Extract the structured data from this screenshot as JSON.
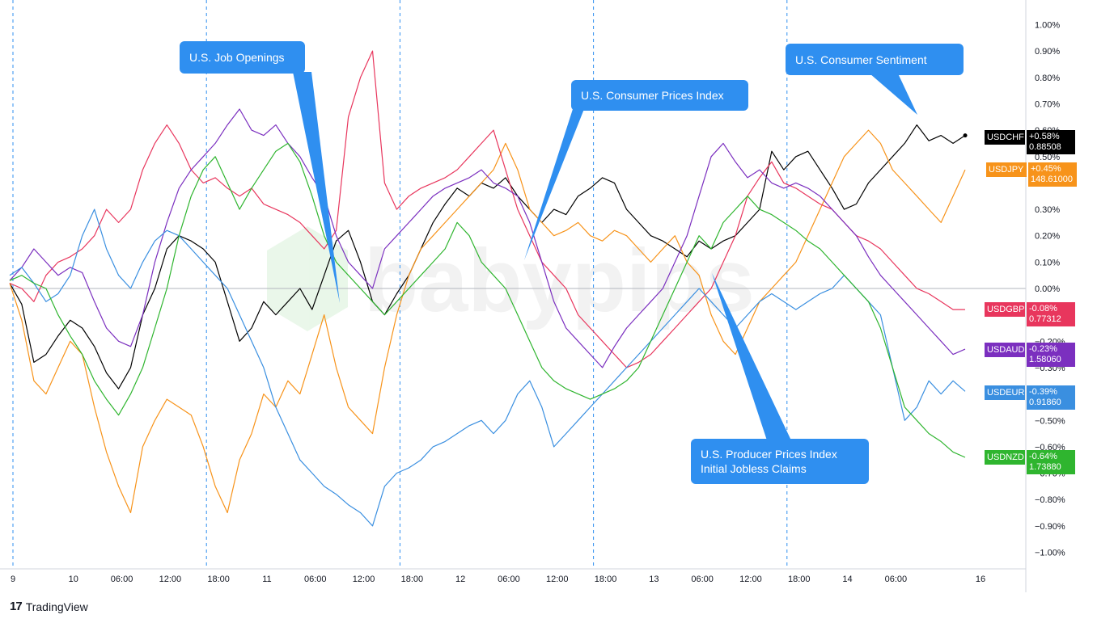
{
  "branding": {
    "logo_mark": "17",
    "logo_text": "TradingView",
    "watermark_text": "babypips"
  },
  "chart_data": {
    "type": "line",
    "ylabel": "",
    "xlabel": "",
    "ylim": [
      -1.05,
      1.05
    ],
    "y_ticks": [
      1.0,
      0.9,
      0.8,
      0.7,
      0.6,
      0.5,
      0.4,
      0.3,
      0.2,
      0.1,
      0.0,
      -0.1,
      -0.2,
      -0.3,
      -0.4,
      -0.5,
      -0.6,
      -0.7,
      -0.8,
      -0.9,
      -1.0
    ],
    "y_tick_labels": [
      "1.00%",
      "0.90%",
      "0.80%",
      "0.70%",
      "0.60%",
      "0.50%",
      "0.40%",
      "0.30%",
      "0.20%",
      "0.10%",
      "0.00%",
      "−0.10%",
      "−0.20%",
      "−0.30%",
      "−0.40%",
      "−0.50%",
      "−0.60%",
      "−0.70%",
      "−0.80%",
      "−0.90%",
      "−1.00%"
    ],
    "x_unit": "hours since 9 00:00",
    "x_range": [
      0,
      168
    ],
    "x_ticks": [
      {
        "x": 0,
        "label": "9"
      },
      {
        "x": 10,
        "label": "10"
      },
      {
        "x": 18,
        "label": "06:00"
      },
      {
        "x": 26,
        "label": "12:00"
      },
      {
        "x": 34,
        "label": "18:00"
      },
      {
        "x": 42,
        "label": "11"
      },
      {
        "x": 50,
        "label": "06:00"
      },
      {
        "x": 58,
        "label": "12:00"
      },
      {
        "x": 66,
        "label": "18:00"
      },
      {
        "x": 74,
        "label": "12"
      },
      {
        "x": 82,
        "label": "06:00"
      },
      {
        "x": 90,
        "label": "12:00"
      },
      {
        "x": 98,
        "label": "18:00"
      },
      {
        "x": 106,
        "label": "13"
      },
      {
        "x": 114,
        "label": "06:00"
      },
      {
        "x": 122,
        "label": "12:00"
      },
      {
        "x": 130,
        "label": "18:00"
      },
      {
        "x": 138,
        "label": "14"
      },
      {
        "x": 146,
        "label": "06:00"
      },
      {
        "x": 160,
        "label": "16"
      }
    ],
    "event_lines_x": [
      0,
      32,
      64,
      96,
      128
    ],
    "zero_line": true,
    "grid": false,
    "legend": "right-axis labels",
    "series": [
      {
        "name": "USDCHF",
        "change": "+0.58%",
        "price": "0.88508",
        "color": "#000000",
        "x": [
          0,
          2,
          4,
          6,
          8,
          10,
          12,
          14,
          16,
          18,
          20,
          22,
          24,
          26,
          28,
          30,
          32,
          34,
          36,
          38,
          40,
          42,
          44,
          46,
          48,
          50,
          52,
          54,
          56,
          58,
          60,
          62,
          64,
          66,
          68,
          70,
          72,
          74,
          76,
          78,
          80,
          82,
          84,
          86,
          88,
          90,
          92,
          94,
          96,
          98,
          100,
          102,
          104,
          106,
          108,
          110,
          112,
          114,
          116,
          118,
          120,
          122,
          124,
          126,
          128,
          130,
          132,
          134,
          136,
          138,
          140,
          142,
          144,
          146,
          148,
          150,
          152,
          154,
          156,
          158
        ],
        "values": [
          0.02,
          -0.06,
          -0.28,
          -0.25,
          -0.18,
          -0.12,
          -0.15,
          -0.22,
          -0.32,
          -0.38,
          -0.3,
          -0.1,
          0.0,
          0.15,
          0.2,
          0.18,
          0.15,
          0.1,
          -0.05,
          -0.2,
          -0.15,
          -0.05,
          -0.1,
          -0.05,
          0.0,
          -0.08,
          0.05,
          0.18,
          0.22,
          0.1,
          -0.05,
          -0.1,
          -0.02,
          0.05,
          0.15,
          0.25,
          0.32,
          0.38,
          0.35,
          0.4,
          0.38,
          0.42,
          0.35,
          0.3,
          0.25,
          0.3,
          0.28,
          0.35,
          0.38,
          0.42,
          0.4,
          0.3,
          0.25,
          0.2,
          0.18,
          0.15,
          0.12,
          0.18,
          0.15,
          0.18,
          0.2,
          0.25,
          0.3,
          0.52,
          0.45,
          0.5,
          0.52,
          0.45,
          0.38,
          0.3,
          0.32,
          0.4,
          0.45,
          0.5,
          0.55,
          0.62,
          0.56,
          0.58,
          0.55,
          0.58
        ]
      },
      {
        "name": "USDJPY",
        "change": "+0.45%",
        "price": "148.61000",
        "color": "#f7931a",
        "x": [
          0,
          2,
          4,
          6,
          8,
          10,
          12,
          14,
          16,
          18,
          20,
          22,
          24,
          26,
          28,
          30,
          32,
          34,
          36,
          38,
          40,
          42,
          44,
          46,
          48,
          50,
          52,
          54,
          56,
          58,
          60,
          62,
          64,
          66,
          68,
          70,
          72,
          74,
          76,
          78,
          80,
          82,
          84,
          86,
          88,
          90,
          92,
          94,
          96,
          98,
          100,
          102,
          104,
          106,
          108,
          110,
          112,
          114,
          116,
          118,
          120,
          122,
          124,
          126,
          128,
          130,
          132,
          134,
          136,
          138,
          140,
          142,
          144,
          146,
          148,
          150,
          152,
          154,
          156,
          158
        ],
        "values": [
          0.02,
          -0.12,
          -0.35,
          -0.4,
          -0.3,
          -0.2,
          -0.25,
          -0.45,
          -0.62,
          -0.75,
          -0.85,
          -0.6,
          -0.5,
          -0.42,
          -0.45,
          -0.48,
          -0.6,
          -0.75,
          -0.85,
          -0.65,
          -0.55,
          -0.4,
          -0.45,
          -0.35,
          -0.4,
          -0.25,
          -0.1,
          -0.3,
          -0.45,
          -0.5,
          -0.55,
          -0.3,
          -0.1,
          0.05,
          0.15,
          0.2,
          0.25,
          0.3,
          0.35,
          0.4,
          0.45,
          0.55,
          0.45,
          0.3,
          0.25,
          0.2,
          0.22,
          0.25,
          0.2,
          0.18,
          0.22,
          0.2,
          0.15,
          0.1,
          0.15,
          0.2,
          0.1,
          0.05,
          -0.1,
          -0.2,
          -0.25,
          -0.15,
          -0.05,
          0.0,
          0.05,
          0.1,
          0.2,
          0.3,
          0.4,
          0.5,
          0.55,
          0.6,
          0.55,
          0.45,
          0.4,
          0.35,
          0.3,
          0.25,
          0.35,
          0.45
        ]
      },
      {
        "name": "USDGBP",
        "change": "-0.08%",
        "price": "0.77312",
        "color": "#e8365d",
        "x": [
          0,
          2,
          4,
          6,
          8,
          10,
          12,
          14,
          16,
          18,
          20,
          22,
          24,
          26,
          28,
          30,
          32,
          34,
          36,
          38,
          40,
          42,
          44,
          46,
          48,
          50,
          52,
          54,
          56,
          58,
          60,
          62,
          64,
          66,
          68,
          70,
          72,
          74,
          76,
          78,
          80,
          82,
          84,
          86,
          88,
          90,
          92,
          94,
          96,
          98,
          100,
          102,
          104,
          106,
          108,
          110,
          112,
          114,
          116,
          118,
          120,
          122,
          124,
          126,
          128,
          130,
          132,
          134,
          136,
          138,
          140,
          142,
          144,
          146,
          148,
          150,
          152,
          154,
          156,
          158
        ],
        "values": [
          0.02,
          0.0,
          -0.05,
          0.05,
          0.1,
          0.12,
          0.15,
          0.2,
          0.3,
          0.25,
          0.3,
          0.45,
          0.55,
          0.62,
          0.55,
          0.45,
          0.4,
          0.42,
          0.38,
          0.35,
          0.38,
          0.32,
          0.3,
          0.28,
          0.25,
          0.2,
          0.15,
          0.22,
          0.65,
          0.8,
          0.9,
          0.4,
          0.3,
          0.35,
          0.38,
          0.4,
          0.42,
          0.45,
          0.5,
          0.55,
          0.6,
          0.45,
          0.3,
          0.2,
          0.1,
          0.05,
          0.0,
          -0.1,
          -0.15,
          -0.2,
          -0.25,
          -0.3,
          -0.28,
          -0.25,
          -0.2,
          -0.15,
          -0.1,
          -0.05,
          0.0,
          0.1,
          0.2,
          0.35,
          0.42,
          0.48,
          0.4,
          0.38,
          0.35,
          0.32,
          0.3,
          0.25,
          0.2,
          0.18,
          0.15,
          0.1,
          0.05,
          0.0,
          -0.02,
          -0.05,
          -0.08,
          -0.08
        ]
      },
      {
        "name": "USDAUD",
        "change": "-0.23%",
        "price": "1.58060",
        "color": "#7b2fbf",
        "x": [
          0,
          2,
          4,
          6,
          8,
          10,
          12,
          14,
          16,
          18,
          20,
          22,
          24,
          26,
          28,
          30,
          32,
          34,
          36,
          38,
          40,
          42,
          44,
          46,
          48,
          50,
          52,
          54,
          56,
          58,
          60,
          62,
          64,
          66,
          68,
          70,
          72,
          74,
          76,
          78,
          80,
          82,
          84,
          86,
          88,
          90,
          92,
          94,
          96,
          98,
          100,
          102,
          104,
          106,
          108,
          110,
          112,
          114,
          116,
          118,
          120,
          122,
          124,
          126,
          128,
          130,
          132,
          134,
          136,
          138,
          140,
          142,
          144,
          146,
          148,
          150,
          152,
          154,
          156,
          158
        ],
        "values": [
          0.03,
          0.08,
          0.15,
          0.1,
          0.05,
          0.08,
          0.06,
          -0.05,
          -0.15,
          -0.2,
          -0.22,
          -0.1,
          0.1,
          0.25,
          0.38,
          0.45,
          0.5,
          0.55,
          0.62,
          0.68,
          0.6,
          0.58,
          0.62,
          0.55,
          0.5,
          0.42,
          0.35,
          0.2,
          0.1,
          0.05,
          0.0,
          0.15,
          0.2,
          0.25,
          0.3,
          0.35,
          0.38,
          0.4,
          0.42,
          0.45,
          0.4,
          0.38,
          0.35,
          0.25,
          0.1,
          -0.05,
          -0.15,
          -0.2,
          -0.25,
          -0.3,
          -0.22,
          -0.15,
          -0.1,
          -0.05,
          0.0,
          0.1,
          0.2,
          0.35,
          0.5,
          0.55,
          0.48,
          0.42,
          0.45,
          0.4,
          0.38,
          0.4,
          0.38,
          0.35,
          0.3,
          0.25,
          0.2,
          0.12,
          0.05,
          0.0,
          -0.05,
          -0.1,
          -0.15,
          -0.2,
          -0.25,
          -0.23
        ]
      },
      {
        "name": "USDEUR",
        "change": "-0.39%",
        "price": "0.91860",
        "color": "#3a8fe0",
        "x": [
          0,
          2,
          4,
          6,
          8,
          10,
          12,
          14,
          16,
          18,
          20,
          22,
          24,
          26,
          28,
          30,
          32,
          34,
          36,
          38,
          40,
          42,
          44,
          46,
          48,
          50,
          52,
          54,
          56,
          58,
          60,
          62,
          64,
          66,
          68,
          70,
          72,
          74,
          76,
          78,
          80,
          82,
          84,
          86,
          88,
          90,
          92,
          94,
          96,
          98,
          100,
          102,
          104,
          106,
          108,
          110,
          112,
          114,
          116,
          118,
          120,
          122,
          124,
          126,
          128,
          130,
          132,
          134,
          136,
          138,
          140,
          142,
          144,
          146,
          148,
          150,
          152,
          154,
          156,
          158
        ],
        "values": [
          0.05,
          0.08,
          0.02,
          -0.05,
          -0.02,
          0.05,
          0.2,
          0.3,
          0.15,
          0.05,
          0.0,
          0.1,
          0.18,
          0.22,
          0.2,
          0.15,
          0.1,
          0.05,
          0.0,
          -0.1,
          -0.2,
          -0.3,
          -0.45,
          -0.55,
          -0.65,
          -0.7,
          -0.75,
          -0.78,
          -0.82,
          -0.85,
          -0.9,
          -0.75,
          -0.7,
          -0.68,
          -0.65,
          -0.6,
          -0.58,
          -0.55,
          -0.52,
          -0.5,
          -0.55,
          -0.5,
          -0.4,
          -0.35,
          -0.45,
          -0.6,
          -0.55,
          -0.5,
          -0.45,
          -0.4,
          -0.35,
          -0.3,
          -0.25,
          -0.2,
          -0.15,
          -0.1,
          -0.05,
          0.0,
          -0.05,
          -0.1,
          -0.15,
          -0.1,
          -0.05,
          -0.02,
          -0.05,
          -0.08,
          -0.05,
          -0.02,
          0.0,
          0.05,
          0.0,
          -0.05,
          -0.1,
          -0.3,
          -0.5,
          -0.45,
          -0.35,
          -0.4,
          -0.35,
          -0.39
        ]
      },
      {
        "name": "USDNZD",
        "change": "-0.64%",
        "price": "1.73880",
        "color": "#2fb52f",
        "x": [
          0,
          2,
          4,
          6,
          8,
          10,
          12,
          14,
          16,
          18,
          20,
          22,
          24,
          26,
          28,
          30,
          32,
          34,
          36,
          38,
          40,
          42,
          44,
          46,
          48,
          50,
          52,
          54,
          56,
          58,
          60,
          62,
          64,
          66,
          68,
          70,
          72,
          74,
          76,
          78,
          80,
          82,
          84,
          86,
          88,
          90,
          92,
          94,
          96,
          98,
          100,
          102,
          104,
          106,
          108,
          110,
          112,
          114,
          116,
          118,
          120,
          122,
          124,
          126,
          128,
          130,
          132,
          134,
          136,
          138,
          140,
          142,
          144,
          146,
          148,
          150,
          152,
          154,
          156,
          158
        ],
        "values": [
          0.03,
          0.05,
          0.02,
          0.0,
          -0.1,
          -0.18,
          -0.25,
          -0.35,
          -0.42,
          -0.48,
          -0.4,
          -0.3,
          -0.15,
          0.0,
          0.2,
          0.35,
          0.45,
          0.5,
          0.4,
          0.3,
          0.38,
          0.45,
          0.52,
          0.55,
          0.48,
          0.35,
          0.2,
          0.1,
          0.05,
          0.0,
          -0.05,
          -0.1,
          -0.05,
          0.0,
          0.05,
          0.1,
          0.15,
          0.25,
          0.2,
          0.1,
          0.05,
          0.0,
          -0.1,
          -0.2,
          -0.3,
          -0.35,
          -0.38,
          -0.4,
          -0.42,
          -0.4,
          -0.38,
          -0.35,
          -0.3,
          -0.2,
          -0.1,
          0.0,
          0.1,
          0.2,
          0.15,
          0.25,
          0.3,
          0.35,
          0.3,
          0.28,
          0.25,
          0.22,
          0.18,
          0.15,
          0.1,
          0.05,
          0.0,
          -0.05,
          -0.15,
          -0.3,
          -0.45,
          -0.5,
          -0.55,
          -0.58,
          -0.62,
          -0.64
        ]
      }
    ],
    "annotations": [
      {
        "id": "job-openings",
        "lines": [
          "U.S. Job Openings"
        ]
      },
      {
        "id": "cpi",
        "lines": [
          "U.S. Consumer Prices Index"
        ]
      },
      {
        "id": "sentiment",
        "lines": [
          "U.S. Consumer Sentiment"
        ]
      },
      {
        "id": "ppi",
        "lines": [
          "U.S. Producer Prices Index",
          "Initial Jobless Claims"
        ]
      }
    ]
  }
}
